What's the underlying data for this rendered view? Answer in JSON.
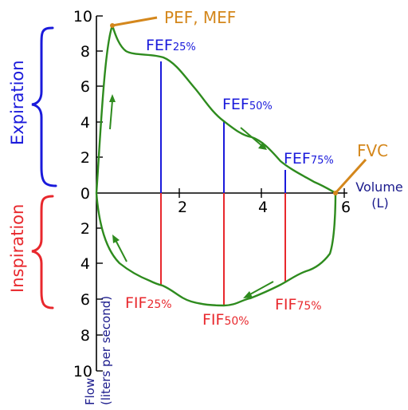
{
  "axes": {
    "y_ticks": [
      "10",
      "8",
      "6",
      "4",
      "2",
      "0",
      "2",
      "4",
      "6",
      "8",
      "10"
    ],
    "x_ticks": [
      "2",
      "4",
      "6"
    ],
    "y_label_line1": "Flow",
    "y_label_line2": "(liters per second)",
    "x_label_line1": "Volume",
    "x_label_line2": "(L)"
  },
  "phases": {
    "expiration": "Expiration",
    "inspiration": "Inspiration"
  },
  "labels": {
    "pef_mef": "PEF, MEF",
    "fvc": "FVC",
    "fef25_main": "FEF",
    "fef25_sub": "25%",
    "fef50_main": "FEF",
    "fef50_sub": "50%",
    "fef75_main": "FEF",
    "fef75_sub": "75%",
    "fif25_main": "FIF",
    "fif25_sub": "25%",
    "fif50_main": "FIF",
    "fif50_sub": "50%",
    "fif75_main": "FIF",
    "fif75_sub": "75%"
  },
  "colors": {
    "curve": "#2e8b1e",
    "expiration": "#1a1adb",
    "inspiration": "#e8282d",
    "annotation": "#d4871c",
    "axis": "#000000"
  }
}
